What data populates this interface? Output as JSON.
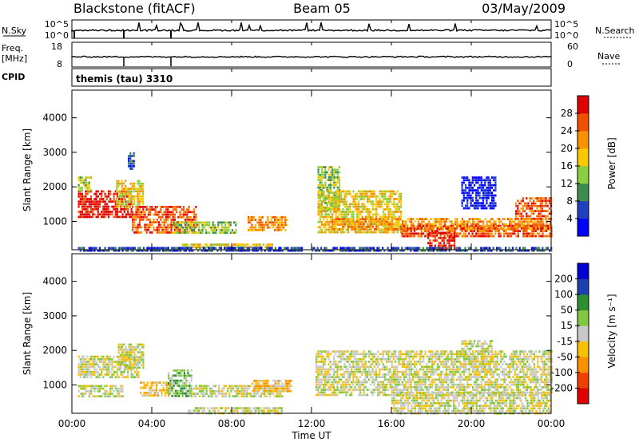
{
  "header": {
    "station": "Blackstone (fitACF)",
    "beam": "Beam 05",
    "date": "03/May/2009"
  },
  "strip_panels": {
    "nsky_label": "N.Sky",
    "nsearch_label": "N.Search",
    "nsky_ticks": [
      "10^5",
      "10^0"
    ],
    "nsearch_ticks": [
      "10^5",
      "10^0"
    ],
    "freq_label": "Freq.",
    "freq_unit": "[MHz]",
    "freq_ticks": [
      "18",
      "8"
    ],
    "nave_label": "Nave",
    "nave_ticks": [
      "60",
      "0"
    ],
    "cpid_label": "CPID",
    "cpid_value": "themis (tau) 3310"
  },
  "colors": {
    "power": [
      "#0000ff",
      "#2040c0",
      "#3c8c50",
      "#88d040",
      "#f8c800",
      "#f89000",
      "#f05000",
      "#e00000"
    ],
    "velocity": [
      "#e00000",
      "#f04000",
      "#f89000",
      "#f8c000",
      "#c8c8c8",
      "#80c840",
      "#2c9030",
      "#1c40b0",
      "#0000d0"
    ]
  },
  "chart_data": [
    {
      "type": "heatmap",
      "name": "power",
      "ylabel": "Slant Range [km]",
      "yticks": [
        "1000",
        "2000",
        "3000",
        "4000"
      ],
      "ylim": [
        180,
        4800
      ],
      "xlim": [
        0,
        24
      ],
      "colorbar_label": "Power [dB]",
      "colorbar_ticks": [
        "4",
        "8",
        "12",
        "16",
        "20",
        "24",
        "28"
      ],
      "colorbar_range": [
        0,
        32
      ],
      "regions": [
        {
          "t0": 0.3,
          "t1": 3.0,
          "r0": 1100,
          "r1": 1900,
          "level": 7
        },
        {
          "t0": 0.3,
          "t1": 1.0,
          "r0": 1900,
          "r1": 2300,
          "level": 3
        },
        {
          "t0": 2.2,
          "t1": 3.6,
          "r0": 1400,
          "r1": 2200,
          "level": 4
        },
        {
          "t0": 2.8,
          "t1": 3.1,
          "r0": 2500,
          "r1": 3000,
          "level": 1
        },
        {
          "t0": 3.0,
          "t1": 6.2,
          "r0": 700,
          "r1": 1450,
          "level": 6
        },
        {
          "t0": 5.0,
          "t1": 8.2,
          "r0": 650,
          "r1": 1000,
          "level": 3
        },
        {
          "t0": 8.8,
          "t1": 10.8,
          "r0": 750,
          "r1": 1150,
          "level": 5
        },
        {
          "t0": 5.5,
          "t1": 10.0,
          "r0": 220,
          "r1": 360,
          "level": 4
        },
        {
          "t0": 0.3,
          "t1": 11.5,
          "r0": 180,
          "r1": 260,
          "level": 1
        },
        {
          "t0": 12.3,
          "t1": 13.4,
          "r0": 1300,
          "r1": 2600,
          "level": 3
        },
        {
          "t0": 12.3,
          "t1": 16.5,
          "r0": 700,
          "r1": 1900,
          "level": 4
        },
        {
          "t0": 13.0,
          "t1": 24.0,
          "r0": 800,
          "r1": 1100,
          "level": 5
        },
        {
          "t0": 16.5,
          "t1": 24.0,
          "r0": 550,
          "r1": 900,
          "level": 6
        },
        {
          "t0": 17.8,
          "t1": 19.2,
          "r0": 220,
          "r1": 700,
          "level": 7
        },
        {
          "t0": 22.2,
          "t1": 24.0,
          "r0": 1100,
          "r1": 1700,
          "level": 6
        },
        {
          "t0": 19.5,
          "t1": 21.2,
          "r0": 1400,
          "r1": 2300,
          "level": 0
        },
        {
          "t0": 12.0,
          "t1": 24.0,
          "r0": 180,
          "r1": 260,
          "level": 1
        }
      ]
    },
    {
      "type": "heatmap",
      "name": "velocity",
      "ylabel": "Slant Range [km]",
      "yticks": [
        "1000",
        "2000",
        "3000",
        "4000"
      ],
      "ylim": [
        180,
        4800
      ],
      "xlim": [
        0,
        24
      ],
      "xticks": [
        "00:00",
        "04:00",
        "08:00",
        "12:00",
        "16:00",
        "20:00",
        "00:00"
      ],
      "xlabel": "Time UT",
      "colorbar_label": "Velocity [m s⁻¹]",
      "colorbar_ticks": [
        "-200",
        "-100",
        "-50",
        "-15",
        "15",
        "50",
        "100",
        "200"
      ],
      "colorbar_range": [
        -250,
        250
      ],
      "regions": [
        {
          "t0": 0.3,
          "t1": 3.3,
          "r0": 1200,
          "r1": 1850,
          "level": 4
        },
        {
          "t0": 0.3,
          "t1": 2.5,
          "r0": 700,
          "r1": 1000,
          "level": 4
        },
        {
          "t0": 2.3,
          "t1": 3.6,
          "r0": 1500,
          "r1": 2200,
          "level": 4
        },
        {
          "t0": 3.4,
          "t1": 5.0,
          "r0": 700,
          "r1": 1100,
          "level": 3
        },
        {
          "t0": 4.8,
          "t1": 6.0,
          "r0": 700,
          "r1": 1450,
          "level": 5
        },
        {
          "t0": 6.0,
          "t1": 10.5,
          "r0": 700,
          "r1": 1000,
          "level": 4
        },
        {
          "t0": 9.0,
          "t1": 11.0,
          "r0": 800,
          "r1": 1150,
          "level": 3
        },
        {
          "t0": 5.8,
          "t1": 10.5,
          "r0": 180,
          "r1": 360,
          "level": 4
        },
        {
          "t0": 12.2,
          "t1": 24.0,
          "r0": 700,
          "r1": 2000,
          "level": 4
        },
        {
          "t0": 16.0,
          "t1": 24.0,
          "r0": 200,
          "r1": 800,
          "level": 4
        },
        {
          "t0": 19.5,
          "t1": 21.0,
          "r0": 1400,
          "r1": 2300,
          "level": 4
        }
      ]
    }
  ]
}
